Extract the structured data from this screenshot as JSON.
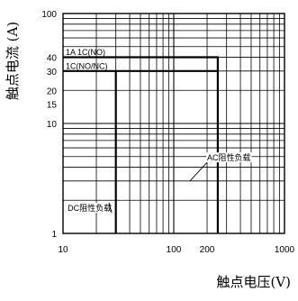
{
  "chart_data": {
    "type": "line",
    "x_scale": "log",
    "y_scale": "log",
    "xlim": [
      10,
      1000
    ],
    "ylim": [
      1,
      100
    ],
    "xlabel": "触点电压(V)",
    "ylabel": "触点电流 (A)",
    "grid": true,
    "x_ticks": [
      {
        "value": 10,
        "label": "10"
      },
      {
        "value": 100,
        "label": "100"
      },
      {
        "value": 200,
        "label": "200"
      },
      {
        "value": 1000,
        "label": "1000"
      }
    ],
    "y_ticks": [
      {
        "value": 1,
        "label": "1"
      },
      {
        "value": 10,
        "label": "10"
      },
      {
        "value": 15,
        "label": "15"
      },
      {
        "value": 20,
        "label": "20"
      },
      {
        "value": 30,
        "label": "30"
      },
      {
        "value": 40,
        "label": "40"
      },
      {
        "value": 100,
        "label": "100"
      }
    ],
    "series": [
      {
        "name": "1A 1C(NO)",
        "points": [
          [
            10,
            40
          ],
          [
            250,
            40
          ],
          [
            250,
            1
          ]
        ]
      },
      {
        "name": "1C(NO/NC)",
        "points": [
          [
            10,
            30
          ],
          [
            250,
            30
          ]
        ]
      }
    ],
    "dc_limit": {
      "x": 30,
      "ymax": 30
    },
    "annotations": [
      {
        "text": "AC阻性负载",
        "x": 200,
        "y": 4.6,
        "leader_to": [
          140,
          3.0
        ]
      },
      {
        "text": "DC阻性负载",
        "x": 11,
        "y": 1.6,
        "leader_to": [
          26,
          1.9
        ]
      }
    ],
    "line_color": "#000000",
    "grid_color": "#000000"
  }
}
